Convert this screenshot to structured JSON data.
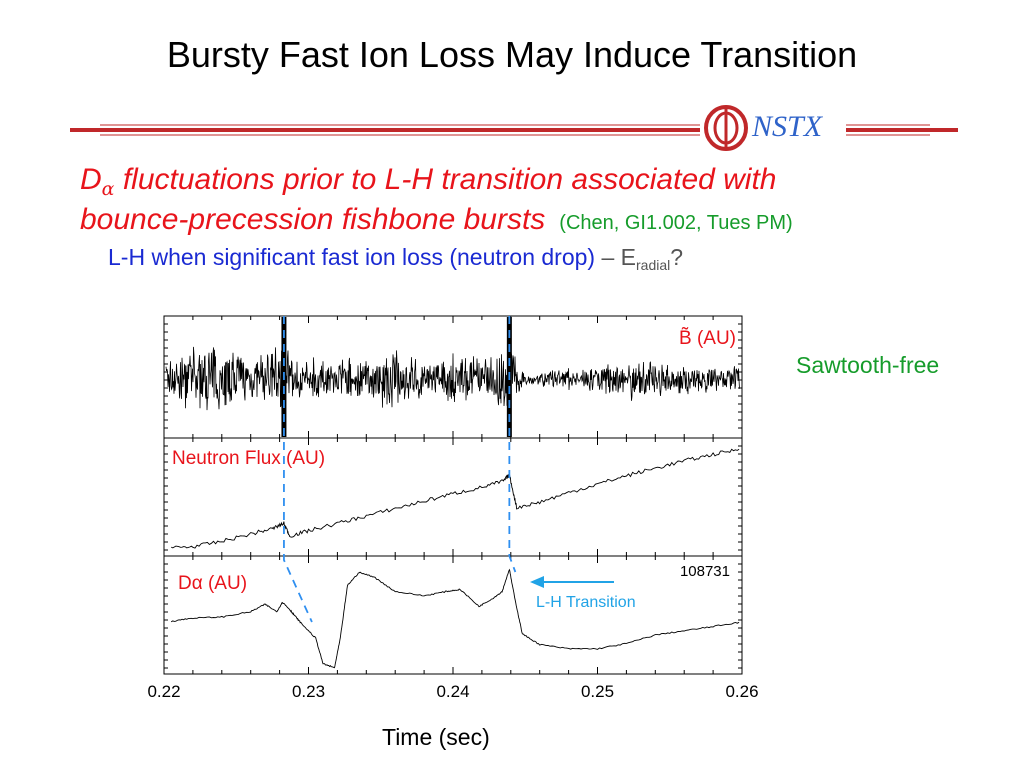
{
  "slide": {
    "title": "Bursty Fast Ion Loss May Induce Transition",
    "logo_text": "NSTX",
    "line1_d": "D",
    "line1_alpha": "α",
    "line1_rest": " fluctuations prior to L-H transition associated with",
    "line2_text": "bounce-precession fishbone bursts",
    "line2_cite": "(Chen, GI1.002, Tues PM)",
    "line3_lh": "L-H",
    "line3_rest": " when significant fast ion loss (neutron drop) ",
    "line3_dash": "–",
    "line3_e": "E",
    "line3_sub": "radial",
    "line3_q": "?",
    "sawtooth": "Sawtooth-free"
  },
  "colors": {
    "red": "#e8141b",
    "green": "#169c2b",
    "blue": "#1a2ad2",
    "cyan": "#21a3e6",
    "dash_blue": "#2f8ff0",
    "logo_blue": "#2f63c9",
    "rule_red": "#c0282a"
  },
  "chart_data": {
    "type": "line",
    "xlabel": "Time (sec)",
    "x_ticks": [
      0.22,
      0.23,
      0.24,
      0.25,
      0.26
    ],
    "x_tick_labels": [
      "0.22",
      "0.23",
      "0.24",
      "0.25",
      "0.26"
    ],
    "xlim": [
      0.22,
      0.26
    ],
    "shot_label": "108731",
    "transition_times": [
      0.2283,
      0.2439
    ],
    "panels": [
      {
        "name": "Magnetic fluctuations",
        "label": "B̃ (AU)",
        "series": [
          {
            "name": "B̃ (AU)",
            "x": [
              0.2205,
              0.2215,
              0.2225,
              0.2235,
              0.2245,
              0.2255,
              0.2265,
              0.2275,
              0.2283,
              0.229,
              0.23,
              0.231,
              0.232,
              0.233,
              0.234,
              0.235,
              0.236,
              0.237,
              0.238,
              0.239,
              0.24,
              0.241,
              0.242,
              0.243,
              0.2439,
              0.245,
              0.247,
              0.249,
              0.251,
              0.253,
              0.255,
              0.257,
              0.259,
              0.2598
            ],
            "amplitude": [
              0.55,
              0.75,
              0.85,
              0.95,
              0.8,
              0.7,
              0.6,
              0.85,
              1.0,
              0.45,
              0.55,
              0.5,
              0.5,
              0.6,
              0.55,
              0.7,
              0.8,
              0.6,
              0.5,
              0.55,
              0.65,
              0.7,
              0.5,
              0.8,
              1.0,
              0.15,
              0.25,
              0.35,
              0.4,
              0.45,
              0.45,
              0.35,
              0.3,
              0.35
            ]
          }
        ]
      },
      {
        "name": "Neutron flux",
        "label": "Neutron Flux (AU)",
        "series": [
          {
            "name": "Neutron Flux (AU)",
            "x": [
              0.2205,
              0.222,
              0.224,
              0.226,
              0.2275,
              0.2283,
              0.2287,
              0.23,
              0.232,
              0.234,
              0.236,
              0.238,
              0.24,
              0.242,
              0.2435,
              0.2439,
              0.2444,
              0.246,
              0.248,
              0.25,
              0.252,
              0.254,
              0.256,
              0.258,
              0.2598
            ],
            "y": [
              0.04,
              0.05,
              0.1,
              0.17,
              0.22,
              0.27,
              0.15,
              0.2,
              0.27,
              0.34,
              0.41,
              0.48,
              0.55,
              0.61,
              0.67,
              0.73,
              0.42,
              0.47,
              0.56,
              0.64,
              0.72,
              0.79,
              0.86,
              0.92,
              0.97
            ]
          }
        ]
      },
      {
        "name": "D-alpha",
        "label": "Dα (AU)",
        "series": [
          {
            "name": "Dα (AU)",
            "x": [
              0.2205,
              0.222,
              0.224,
              0.226,
              0.227,
              0.2278,
              0.2282,
              0.2287,
              0.229,
              0.2295,
              0.2305,
              0.231,
              0.2318,
              0.2322,
              0.2327,
              0.2335,
              0.2345,
              0.236,
              0.238,
              0.2395,
              0.2405,
              0.2418,
              0.2428,
              0.2434,
              0.2439,
              0.2443,
              0.2448,
              0.246,
              0.248,
              0.25,
              0.252,
              0.254,
              0.256,
              0.258,
              0.2598
            ],
            "y": [
              0.46,
              0.49,
              0.5,
              0.55,
              0.62,
              0.55,
              0.64,
              0.57,
              0.52,
              0.44,
              0.3,
              0.06,
              0.02,
              0.3,
              0.8,
              0.92,
              0.88,
              0.74,
              0.7,
              0.74,
              0.76,
              0.6,
              0.68,
              0.74,
              0.95,
              0.66,
              0.34,
              0.24,
              0.2,
              0.2,
              0.25,
              0.33,
              0.37,
              0.41,
              0.45
            ]
          }
        ]
      }
    ],
    "annotation": {
      "text": "L-H Transition"
    }
  }
}
